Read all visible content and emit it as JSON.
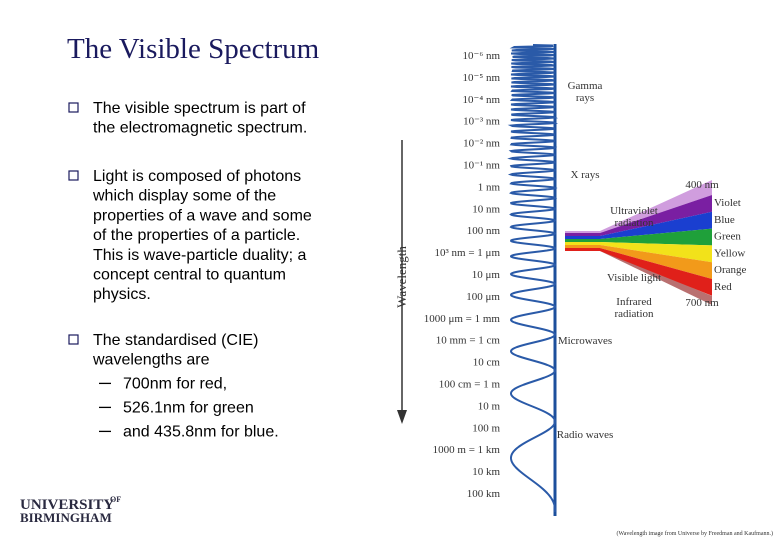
{
  "title": "The Visible Spectrum",
  "bullets": [
    {
      "lines": [
        "The visible spectrum is part of",
        "the electromagnetic spectrum."
      ]
    },
    {
      "lines": [
        "Light is composed of photons",
        "which display some of the",
        "properties of a wave and some",
        "of the properties of a particle.",
        "This is wave-particle duality; a",
        "concept central to quantum",
        "physics."
      ]
    },
    {
      "lines": [
        "The standardised (CIE)",
        "wavelengths are"
      ],
      "sub_bullets": [
        "700nm for red,",
        "526.1nm for green",
        "and 435.8nm for blue."
      ]
    }
  ],
  "figure": {
    "axis_label": "Wavelength",
    "scale": [
      "10⁻⁶ nm",
      "10⁻⁵ nm",
      "10⁻⁴ nm",
      "10⁻³ nm",
      "10⁻² nm",
      "10⁻¹ nm",
      "1 nm",
      "10 nm",
      "100 nm",
      "10³ nm = 1 μm",
      "10 μm",
      "100 μm",
      "1000 μm = 1 mm",
      "10 mm = 1 cm",
      "10 cm",
      "100 cm = 1 m",
      "10 m",
      "100 m",
      "1000 m = 1 km",
      "10 km",
      "100 km"
    ],
    "regions": [
      [
        "Gamma",
        "rays"
      ],
      [
        "X rays"
      ],
      [
        "Ultraviolet",
        "radiation"
      ],
      [
        "Visible light"
      ],
      [
        "Infrared",
        "radiation"
      ],
      [
        "Microwaves"
      ],
      [
        "Radio waves"
      ]
    ],
    "visible_colors": [
      "Violet",
      "Blue",
      "Green",
      "Yellow",
      "Orange",
      "Red"
    ],
    "visible_range": {
      "short": "400 nm",
      "long": "700 nm"
    },
    "caption": "(Wavelength image from Universe by Freedman and Kaufmann.)"
  },
  "logo": {
    "name": "UNIVERSITY",
    "superscript": "OF",
    "city": "BIRMINGHAM"
  }
}
